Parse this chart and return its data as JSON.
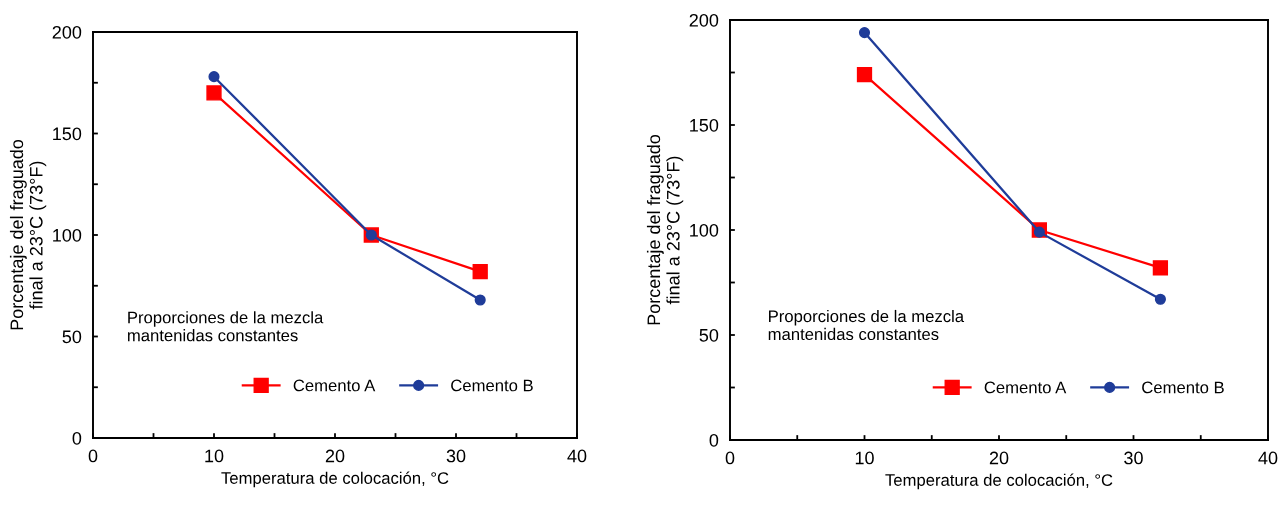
{
  "chart_data": [
    {
      "type": "line",
      "xlabel": "Temperatura de colocación, °C",
      "ylabel": "Porcentaje del fraguado\nfinal a 23°C (73°F)",
      "annotations": [
        "Proporciones de la mezcla\nmantenidas constantes"
      ],
      "x": [
        10,
        23,
        32
      ],
      "series": [
        {
          "name": "Cemento A",
          "color": "#ff0000",
          "marker": "square",
          "values": [
            170,
            100,
            82
          ]
        },
        {
          "name": "Cemento B",
          "color": "#1f3c99",
          "marker": "circle",
          "values": [
            178,
            100,
            68
          ]
        }
      ],
      "xlim": [
        0,
        40
      ],
      "xticks": [
        0,
        {
          "value": 5,
          "label": null
        },
        10,
        {
          "value": 15,
          "label": null
        },
        20,
        {
          "value": 25,
          "label": null
        },
        30,
        {
          "value": 35,
          "label": null
        },
        40
      ],
      "ylim": [
        0,
        200
      ],
      "yticks": [
        0,
        {
          "value": 25,
          "label": null
        },
        50,
        {
          "value": 75,
          "label": null
        },
        100,
        {
          "value": 125,
          "label": null
        },
        150,
        {
          "value": 175,
          "label": null
        },
        200
      ],
      "legend": "bottom right",
      "grid": false
    },
    {
      "type": "line",
      "xlabel": "Temperatura de colocación, °C",
      "ylabel": "Porcentaje del fraguado\nfinal a 23°C (73°F)",
      "annotations": [
        "Proporciones de la mezcla\nmantenidas constantes"
      ],
      "x": [
        10,
        23,
        32
      ],
      "series": [
        {
          "name": "Cemento A",
          "color": "#ff0000",
          "marker": "square",
          "values": [
            174,
            100,
            82
          ]
        },
        {
          "name": "Cemento B",
          "color": "#1f3c99",
          "marker": "circle",
          "values": [
            194,
            99,
            67
          ]
        }
      ],
      "xlim": [
        0,
        40
      ],
      "xticks": [
        0,
        {
          "value": 5,
          "label": null
        },
        10,
        {
          "value": 15,
          "label": null
        },
        20,
        {
          "value": 25,
          "label": null
        },
        30,
        {
          "value": 35,
          "label": null
        },
        40
      ],
      "ylim": [
        0,
        200
      ],
      "yticks": [
        0,
        {
          "value": 25,
          "label": null
        },
        50,
        {
          "value": 75,
          "label": null
        },
        100,
        {
          "value": 125,
          "label": null
        },
        150,
        {
          "value": 175,
          "label": null
        },
        200
      ],
      "legend": "bottom right",
      "grid": false
    }
  ]
}
